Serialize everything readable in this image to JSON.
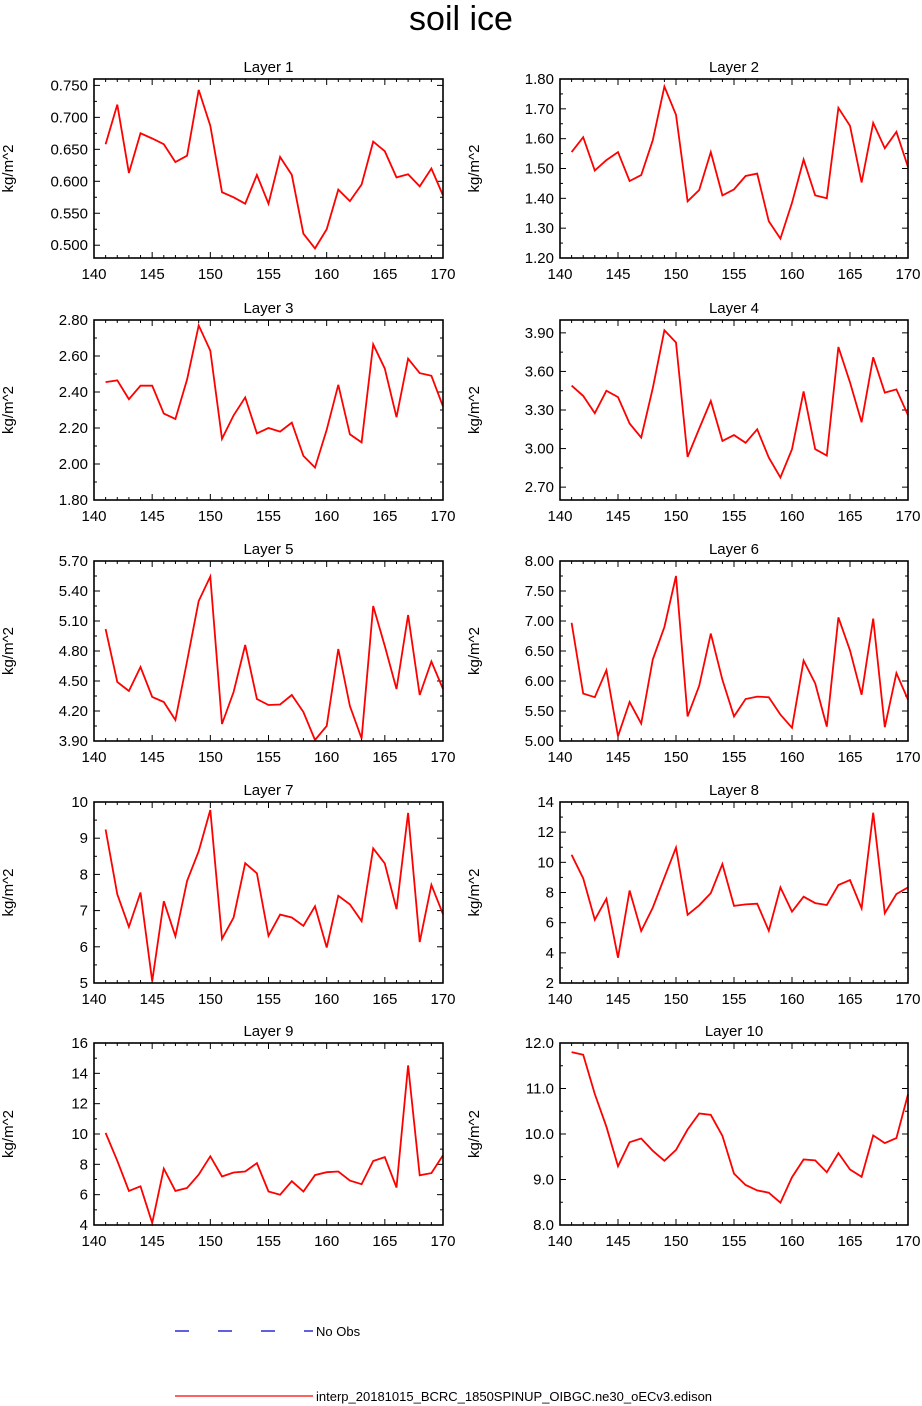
{
  "figure": {
    "title": "soil ice",
    "ylabel": "kg/m^2",
    "line_color": "#ff0000",
    "obs_color": "#0000cc"
  },
  "legend": {
    "obs_label": "No Obs",
    "model_label": "interp_20181015_BCRC_1850SPINUP_OIBGC.ne30_oECv3.edison"
  },
  "chart_data": [
    {
      "type": "line",
      "title": "Layer 1",
      "xlabel": "",
      "ylabel": "kg/m^2",
      "x": [
        141,
        142,
        143,
        144,
        145,
        146,
        147,
        148,
        149,
        150,
        151,
        152,
        153,
        154,
        155,
        156,
        157,
        158,
        159,
        160,
        161,
        162,
        163,
        164,
        165,
        166,
        167,
        168,
        169,
        170
      ],
      "values": [
        0.658,
        0.72,
        0.613,
        0.675,
        0.667,
        0.658,
        0.63,
        0.64,
        0.743,
        0.687,
        0.583,
        0.575,
        0.565,
        0.61,
        0.565,
        0.638,
        0.61,
        0.518,
        0.495,
        0.525,
        0.587,
        0.569,
        0.595,
        0.662,
        0.647,
        0.606,
        0.611,
        0.592,
        0.62,
        0.578
      ],
      "xlim": [
        140,
        170
      ],
      "ylim": [
        0.48,
        0.76
      ],
      "xticks": [
        140,
        145,
        150,
        155,
        160,
        165,
        170
      ],
      "xtick_labels": [
        "140",
        "145",
        "150",
        "155",
        "160",
        "165",
        "170"
      ],
      "yticks": [
        0.5,
        0.55,
        0.6,
        0.65,
        0.7,
        0.75
      ],
      "ytick_labels": [
        "0.500",
        "0.550",
        "0.600",
        "0.650",
        "0.700",
        "0.750"
      ]
    },
    {
      "type": "line",
      "title": "Layer 2",
      "xlabel": "",
      "ylabel": "kg/m^2",
      "x": [
        141,
        142,
        143,
        144,
        145,
        146,
        147,
        148,
        149,
        150,
        151,
        152,
        153,
        154,
        155,
        156,
        157,
        158,
        159,
        160,
        161,
        162,
        163,
        164,
        165,
        166,
        167,
        168,
        169,
        170
      ],
      "values": [
        1.555,
        1.605,
        1.493,
        1.528,
        1.555,
        1.458,
        1.478,
        1.595,
        1.775,
        1.68,
        1.39,
        1.428,
        1.555,
        1.41,
        1.43,
        1.475,
        1.483,
        1.323,
        1.265,
        1.385,
        1.53,
        1.41,
        1.4,
        1.703,
        1.643,
        1.453,
        1.653,
        1.568,
        1.623,
        1.505
      ],
      "xlim": [
        140,
        170
      ],
      "ylim": [
        1.2,
        1.8
      ],
      "xticks": [
        140,
        145,
        150,
        155,
        160,
        165,
        170
      ],
      "xtick_labels": [
        "140",
        "145",
        "150",
        "155",
        "160",
        "165",
        "170"
      ],
      "yticks": [
        1.2,
        1.3,
        1.4,
        1.5,
        1.6,
        1.7,
        1.8
      ],
      "ytick_labels": [
        "1.20",
        "1.30",
        "1.40",
        "1.50",
        "1.60",
        "1.70",
        "1.80"
      ]
    },
    {
      "type": "line",
      "title": "Layer 3",
      "xlabel": "",
      "ylabel": "kg/m^2",
      "x": [
        141,
        142,
        143,
        144,
        145,
        146,
        147,
        148,
        149,
        150,
        151,
        152,
        153,
        154,
        155,
        156,
        157,
        158,
        159,
        160,
        161,
        162,
        163,
        164,
        165,
        166,
        167,
        168,
        169,
        170
      ],
      "values": [
        2.455,
        2.465,
        2.36,
        2.435,
        2.435,
        2.28,
        2.25,
        2.47,
        2.77,
        2.63,
        2.14,
        2.27,
        2.37,
        2.17,
        2.2,
        2.18,
        2.23,
        2.045,
        1.98,
        2.19,
        2.44,
        2.165,
        2.12,
        2.665,
        2.53,
        2.26,
        2.585,
        2.505,
        2.49,
        2.32
      ],
      "xlim": [
        140,
        170
      ],
      "ylim": [
        1.8,
        2.8
      ],
      "xticks": [
        140,
        145,
        150,
        155,
        160,
        165,
        170
      ],
      "xtick_labels": [
        "140",
        "145",
        "150",
        "155",
        "160",
        "165",
        "170"
      ],
      "yticks": [
        1.8,
        2.0,
        2.2,
        2.4,
        2.6,
        2.8
      ],
      "ytick_labels": [
        "1.80",
        "2.00",
        "2.20",
        "2.40",
        "2.60",
        "2.80"
      ]
    },
    {
      "type": "line",
      "title": "Layer 4",
      "xlabel": "",
      "ylabel": "kg/m^2",
      "x": [
        141,
        142,
        143,
        144,
        145,
        146,
        147,
        148,
        149,
        150,
        151,
        152,
        153,
        154,
        155,
        156,
        157,
        158,
        159,
        160,
        161,
        162,
        163,
        164,
        165,
        166,
        167,
        168,
        169,
        170
      ],
      "values": [
        3.49,
        3.41,
        3.275,
        3.45,
        3.4,
        3.195,
        3.085,
        3.47,
        3.92,
        3.825,
        2.935,
        3.155,
        3.37,
        3.06,
        3.105,
        3.045,
        3.15,
        2.93,
        2.775,
        2.995,
        3.445,
        2.995,
        2.945,
        3.79,
        3.515,
        3.205,
        3.71,
        3.435,
        3.46,
        3.26
      ],
      "xlim": [
        140,
        170
      ],
      "ylim": [
        2.6,
        4.0
      ],
      "xticks": [
        140,
        145,
        150,
        155,
        160,
        165,
        170
      ],
      "xtick_labels": [
        "140",
        "145",
        "150",
        "155",
        "160",
        "165",
        "170"
      ],
      "yticks": [
        2.7,
        3.0,
        3.3,
        3.6,
        3.9
      ],
      "ytick_labels": [
        "2.70",
        "3.00",
        "3.30",
        "3.60",
        "3.90"
      ]
    },
    {
      "type": "line",
      "title": "Layer 5",
      "xlabel": "",
      "ylabel": "kg/m^2",
      "x": [
        141,
        142,
        143,
        144,
        145,
        146,
        147,
        148,
        149,
        150,
        151,
        152,
        153,
        154,
        155,
        156,
        157,
        158,
        159,
        160,
        161,
        162,
        163,
        164,
        165,
        166,
        167,
        168,
        169,
        170
      ],
      "values": [
        5.02,
        4.49,
        4.4,
        4.64,
        4.34,
        4.29,
        4.11,
        4.7,
        5.3,
        5.545,
        4.07,
        4.39,
        4.86,
        4.32,
        4.26,
        4.265,
        4.36,
        4.19,
        3.91,
        4.05,
        4.82,
        4.25,
        3.925,
        5.25,
        4.85,
        4.42,
        5.16,
        4.36,
        4.695,
        4.42
      ],
      "xlim": [
        140,
        170
      ],
      "ylim": [
        3.9,
        5.7
      ],
      "xticks": [
        140,
        145,
        150,
        155,
        160,
        165,
        170
      ],
      "xtick_labels": [
        "140",
        "145",
        "150",
        "155",
        "160",
        "165",
        "170"
      ],
      "yticks": [
        3.9,
        4.2,
        4.5,
        4.8,
        5.1,
        5.4,
        5.7
      ],
      "ytick_labels": [
        "3.90",
        "4.20",
        "4.50",
        "4.80",
        "5.10",
        "5.40",
        "5.70"
      ]
    },
    {
      "type": "line",
      "title": "Layer 6",
      "xlabel": "",
      "ylabel": "kg/m^2",
      "x": [
        141,
        142,
        143,
        144,
        145,
        146,
        147,
        148,
        149,
        150,
        151,
        152,
        153,
        154,
        155,
        156,
        157,
        158,
        159,
        160,
        161,
        162,
        163,
        164,
        165,
        166,
        167,
        168,
        169,
        170
      ],
      "values": [
        6.97,
        5.79,
        5.73,
        6.18,
        5.08,
        5.65,
        5.29,
        6.36,
        6.9,
        7.75,
        5.41,
        5.92,
        6.79,
        6.02,
        5.41,
        5.7,
        5.74,
        5.73,
        5.44,
        5.22,
        6.34,
        5.96,
        5.24,
        7.06,
        6.51,
        5.77,
        7.04,
        5.23,
        6.13,
        5.69
      ],
      "xlim": [
        140,
        170
      ],
      "ylim": [
        5.0,
        8.0
      ],
      "xticks": [
        140,
        145,
        150,
        155,
        160,
        165,
        170
      ],
      "xtick_labels": [
        "140",
        "145",
        "150",
        "155",
        "160",
        "165",
        "170"
      ],
      "yticks": [
        5.0,
        5.5,
        6.0,
        6.5,
        7.0,
        7.5,
        8.0
      ],
      "ytick_labels": [
        "5.00",
        "5.50",
        "6.00",
        "6.50",
        "7.00",
        "7.50",
        "8.00"
      ]
    },
    {
      "type": "line",
      "title": "Layer 7",
      "xlabel": "",
      "ylabel": "kg/m^2",
      "x": [
        141,
        142,
        143,
        144,
        145,
        146,
        147,
        148,
        149,
        150,
        151,
        152,
        153,
        154,
        155,
        156,
        157,
        158,
        159,
        160,
        161,
        162,
        163,
        164,
        165,
        166,
        167,
        168,
        169,
        170
      ],
      "values": [
        9.24,
        7.45,
        6.55,
        7.5,
        5.05,
        7.26,
        6.29,
        7.82,
        8.64,
        9.78,
        6.22,
        6.81,
        8.31,
        8.03,
        6.3,
        6.89,
        6.81,
        6.58,
        7.12,
        5.98,
        7.41,
        7.17,
        6.71,
        8.72,
        8.3,
        7.04,
        9.7,
        6.13,
        7.71,
        6.9
      ],
      "xlim": [
        140,
        170
      ],
      "ylim": [
        5,
        10
      ],
      "xticks": [
        140,
        145,
        150,
        155,
        160,
        165,
        170
      ],
      "xtick_labels": [
        "140",
        "145",
        "150",
        "155",
        "160",
        "165",
        "170"
      ],
      "yticks": [
        5,
        6,
        7,
        8,
        9,
        10
      ],
      "ytick_labels": [
        "5",
        "6",
        "7",
        "8",
        "9",
        "10"
      ]
    },
    {
      "type": "line",
      "title": "Layer 8",
      "xlabel": "",
      "ylabel": "kg/m^2",
      "x": [
        141,
        142,
        143,
        144,
        145,
        146,
        147,
        148,
        149,
        150,
        151,
        152,
        153,
        154,
        155,
        156,
        157,
        158,
        159,
        160,
        161,
        162,
        163,
        164,
        165,
        166,
        167,
        168,
        169,
        170
      ],
      "values": [
        10.5,
        8.94,
        6.19,
        7.59,
        3.68,
        8.13,
        5.45,
        7.0,
        9.0,
        10.98,
        6.52,
        7.15,
        7.96,
        9.88,
        7.11,
        7.21,
        7.26,
        5.47,
        8.34,
        6.73,
        7.72,
        7.3,
        7.17,
        8.5,
        8.82,
        6.95,
        13.29,
        6.63,
        7.9,
        8.34
      ],
      "xlim": [
        140,
        170
      ],
      "ylim": [
        2,
        14
      ],
      "xticks": [
        140,
        145,
        150,
        155,
        160,
        165,
        170
      ],
      "xtick_labels": [
        "140",
        "145",
        "150",
        "155",
        "160",
        "165",
        "170"
      ],
      "yticks": [
        2,
        4,
        6,
        8,
        10,
        12,
        14
      ],
      "ytick_labels": [
        "2",
        "4",
        "6",
        "8",
        "10",
        "12",
        "14"
      ]
    },
    {
      "type": "line",
      "title": "Layer 9",
      "xlabel": "",
      "ylabel": "kg/m^2",
      "x": [
        141,
        142,
        143,
        144,
        145,
        146,
        147,
        148,
        149,
        150,
        151,
        152,
        153,
        154,
        155,
        156,
        157,
        158,
        159,
        160,
        161,
        162,
        163,
        164,
        165,
        166,
        167,
        168,
        169,
        170
      ],
      "values": [
        10.07,
        8.23,
        6.25,
        6.55,
        4.13,
        7.72,
        6.25,
        6.44,
        7.32,
        8.53,
        7.2,
        7.46,
        7.53,
        8.08,
        6.21,
        6.0,
        6.89,
        6.21,
        7.29,
        7.48,
        7.53,
        6.93,
        6.69,
        8.22,
        8.48,
        6.47,
        14.52,
        7.28,
        7.42,
        8.6
      ],
      "xlim": [
        140,
        170
      ],
      "ylim": [
        4,
        16
      ],
      "xticks": [
        140,
        145,
        150,
        155,
        160,
        165,
        170
      ],
      "xtick_labels": [
        "140",
        "145",
        "150",
        "155",
        "160",
        "165",
        "170"
      ],
      "yticks": [
        4,
        6,
        8,
        10,
        12,
        14,
        16
      ],
      "ytick_labels": [
        "4",
        "6",
        "8",
        "10",
        "12",
        "14",
        "16"
      ]
    },
    {
      "type": "line",
      "title": "Layer 10",
      "xlabel": "",
      "ylabel": "kg/m^2",
      "x": [
        141,
        142,
        143,
        144,
        145,
        146,
        147,
        148,
        149,
        150,
        151,
        152,
        153,
        154,
        155,
        156,
        157,
        158,
        159,
        160,
        161,
        162,
        163,
        164,
        165,
        166,
        167,
        168,
        169,
        170
      ],
      "values": [
        11.8,
        11.74,
        10.88,
        10.16,
        9.29,
        9.82,
        9.9,
        9.63,
        9.41,
        9.65,
        10.1,
        10.45,
        10.42,
        9.96,
        9.13,
        8.88,
        8.76,
        8.71,
        8.49,
        9.05,
        9.44,
        9.42,
        9.16,
        9.58,
        9.22,
        9.06,
        9.97,
        9.8,
        9.91,
        10.87
      ],
      "xlim": [
        140,
        170
      ],
      "ylim": [
        8,
        12
      ],
      "xticks": [
        140,
        145,
        150,
        155,
        160,
        165,
        170
      ],
      "xtick_labels": [
        "140",
        "145",
        "150",
        "155",
        "160",
        "165",
        "170"
      ],
      "yticks": [
        8,
        9,
        10,
        11,
        12
      ],
      "ytick_labels": [
        "8.0",
        "9.0",
        "10.0",
        "11.0",
        "12.0"
      ]
    }
  ]
}
